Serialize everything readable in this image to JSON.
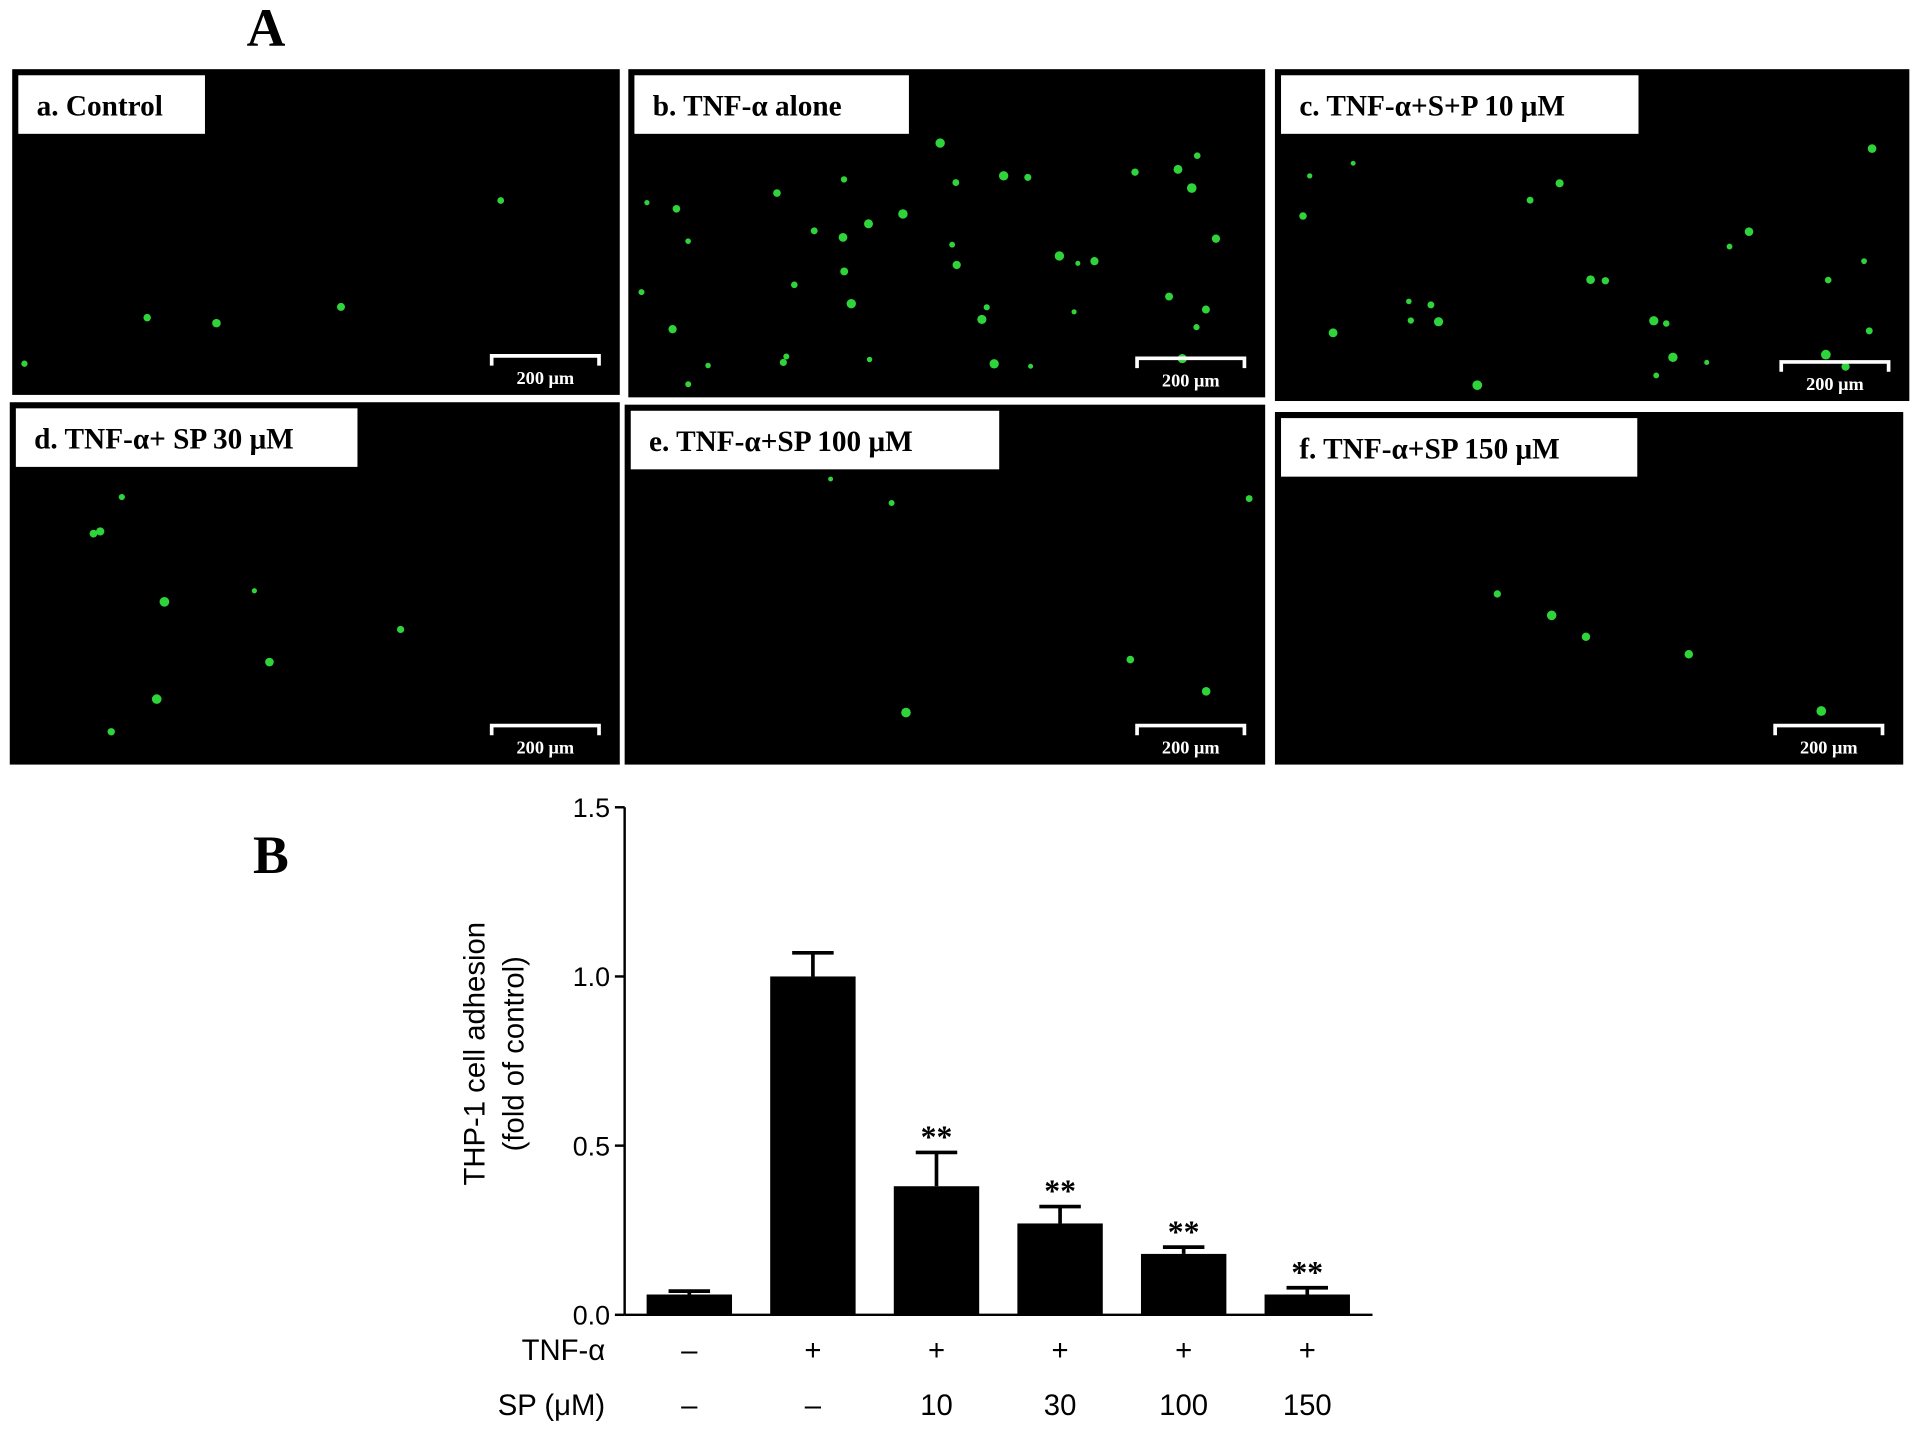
{
  "panel_a": {
    "letter": "A",
    "images": [
      {
        "label": "a. Control",
        "scale_bar": "200 μm"
      },
      {
        "label": "b. TNF-α alone",
        "scale_bar": "200 μm"
      },
      {
        "label": "c. TNF-α+S+P 10 μM",
        "scale_bar": "200 μm"
      },
      {
        "label": "d. TNF-α+ SP 30 μM",
        "scale_bar": "200 μm"
      },
      {
        "label": "e. TNF-α+SP 100 μM",
        "scale_bar": "200 μm"
      },
      {
        "label": "f. TNF-α+SP 150 μM",
        "scale_bar": "200 μm"
      }
    ]
  },
  "chart_data": {
    "type": "bar",
    "panel_letter": "B",
    "y_label": [
      "THP-1 cell adhesion",
      "(fold of control)"
    ],
    "category_rows": [
      {
        "name": "TNF-α",
        "labels": [
          "–",
          "+",
          "+",
          "+",
          "+",
          "+"
        ]
      },
      {
        "name": "SP (μM)",
        "labels": [
          "–",
          "–",
          "10",
          "30",
          "100",
          "150"
        ]
      }
    ],
    "values": [
      0.06,
      1.0,
      0.38,
      0.27,
      0.18,
      0.06
    ],
    "errors": [
      0.01,
      0.07,
      0.1,
      0.05,
      0.02,
      0.02
    ],
    "annotations": [
      null,
      null,
      "**",
      "**",
      "**",
      "**"
    ],
    "color": "#000000",
    "ylim": [
      0,
      1.5
    ],
    "yticks": [
      {
        "value": 0,
        "label": "0.0"
      },
      {
        "value": 0.5,
        "label": "0.5"
      },
      {
        "value": 1,
        "label": "1.0"
      },
      {
        "value": 1.5,
        "label": "1.5"
      }
    ]
  }
}
